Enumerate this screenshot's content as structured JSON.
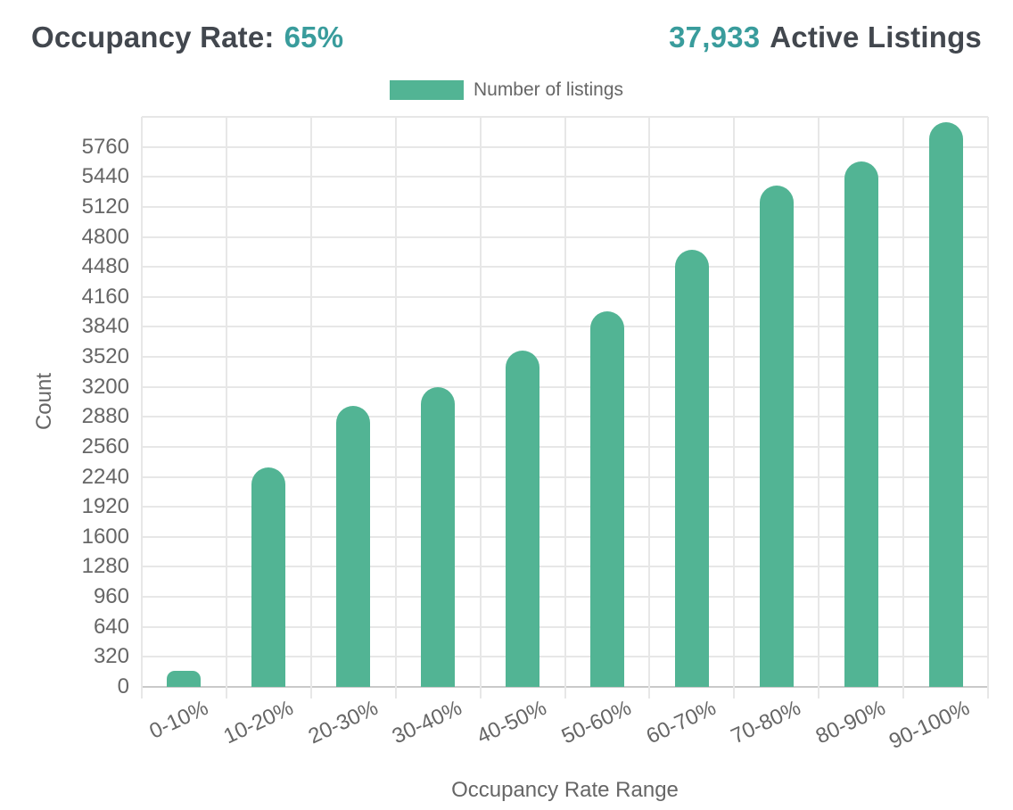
{
  "header": {
    "occupancy_label": "Occupancy Rate:",
    "occupancy_value": "65%",
    "active_listings_value": "37,933",
    "active_listings_label": "Active Listings"
  },
  "chart_data": {
    "type": "bar",
    "categories": [
      "0-10%",
      "10-20%",
      "20-30%",
      "30-40%",
      "40-50%",
      "50-60%",
      "60-70%",
      "70-80%",
      "80-90%",
      "90-100%"
    ],
    "series": [
      {
        "name": "Number of listings",
        "values": [
          170,
          2340,
          3000,
          3200,
          3590,
          4005,
          4660,
          5350,
          5605,
          6020
        ]
      }
    ],
    "title": "",
    "xlabel": "Occupancy Rate Range",
    "ylabel": "Count",
    "ylim": [
      0,
      6080
    ],
    "ytick_step": 320,
    "ytick_labels_max": 5760,
    "grid": true,
    "legend_position": "top",
    "x_tick_rotation_deg": -25
  },
  "colors": {
    "bar": "#52b494",
    "accent_teal": "#399c9c",
    "heading_text": "#42474e",
    "axis_text": "#666666",
    "gridline": "#e7e7e7",
    "axis_line": "#c9c9c9"
  }
}
